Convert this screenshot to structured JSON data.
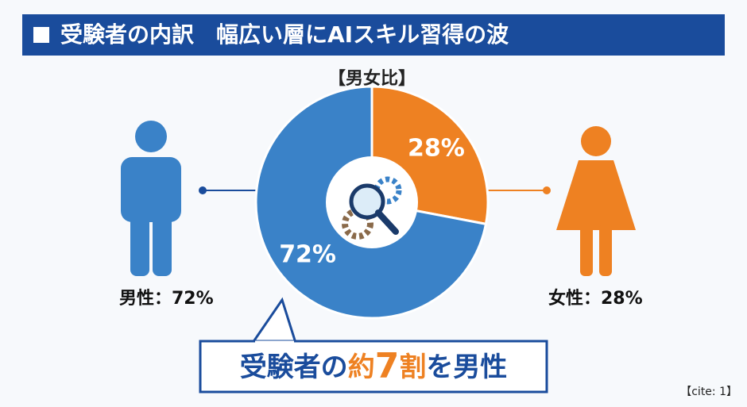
{
  "title": "受験者の内訳　幅広い層にAIスキル習得の波",
  "chart_data": {
    "type": "pie",
    "subtitle": "【男女比】",
    "values": [
      72,
      28
    ],
    "value_labels": [
      "72%",
      "28%"
    ],
    "colors": [
      "#3a82c8",
      "#ee8122"
    ],
    "labels": [
      "男性：72%",
      "女性：28%"
    ]
  },
  "callout": [
    "受験者の",
    "約",
    "7",
    "割",
    "を男性"
  ],
  "cite": "【cite: 1】"
}
